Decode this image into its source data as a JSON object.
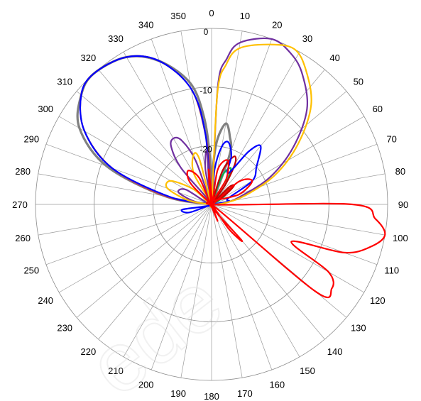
{
  "chart_data": {
    "type": "polar-line",
    "title": "",
    "angle_direction": "clockwise",
    "zero_at": "top",
    "angle_labels": [
      "0",
      "10",
      "20",
      "30",
      "40",
      "50",
      "60",
      "70",
      "80",
      "90",
      "100",
      "110",
      "120",
      "130",
      "140",
      "150",
      "160",
      "170",
      "180",
      "190",
      "200",
      "210",
      "220",
      "230",
      "240",
      "250",
      "260",
      "270",
      "280",
      "290",
      "300",
      "310",
      "320",
      "330",
      "340",
      "350"
    ],
    "radial_range_db": [
      -30,
      0
    ],
    "radial_ticks": [
      "0",
      "-10",
      "-20"
    ],
    "grid": true,
    "watermark": "ede",
    "series": [
      {
        "color": "#c0504d",
        "theta": [
          -90,
          -80,
          -70,
          -60,
          -50,
          -42,
          -30,
          -20,
          -10,
          -5,
          -2,
          0,
          2,
          5
        ],
        "r": [
          -30,
          -22,
          -12,
          -5,
          -1,
          0,
          -1,
          -4,
          -10,
          -18,
          -25,
          -30,
          -27,
          -30
        ]
      },
      {
        "color": "#808080",
        "theta": [
          -90,
          -80,
          -70,
          -60,
          -50,
          -42,
          -30,
          -20,
          -10,
          -5,
          -2,
          0,
          2,
          5,
          10,
          15,
          20,
          25
        ],
        "r": [
          -30,
          -22,
          -11,
          -4,
          -1,
          0,
          -1,
          -4,
          -9,
          -15,
          -22,
          -30,
          -24,
          -19,
          -16,
          -18,
          -21,
          -30
        ]
      },
      {
        "color": "#0000ff",
        "theta": [
          -120,
          -110,
          -100,
          -90,
          -80,
          -70,
          -60,
          -50,
          -42,
          -30,
          -20,
          -10,
          -5,
          0,
          5,
          10,
          15,
          22,
          28,
          35,
          40,
          50,
          60,
          70,
          80,
          90
        ],
        "r": [
          -30,
          -26,
          -25,
          -30,
          -23,
          -12,
          -5,
          -1,
          0,
          -1,
          -4,
          -10,
          -18,
          -30,
          -24,
          -20,
          -19,
          -21,
          -24,
          -19,
          -17,
          -20,
          -22,
          -27,
          -27,
          -30
        ]
      },
      {
        "color": "#7030a0",
        "theta": [
          -90,
          -80,
          -70,
          -60,
          -50,
          -40,
          -35,
          -30,
          -25,
          -20,
          -15,
          -10,
          -5,
          0,
          3,
          6,
          10,
          20,
          28,
          35,
          45,
          55,
          65,
          75,
          85,
          90
        ],
        "r": [
          -30,
          -27,
          -24,
          -25,
          -30,
          -22,
          -18,
          -17,
          -18,
          -22,
          -30,
          -24,
          -21,
          -30,
          -10,
          -5,
          -2,
          0,
          -1,
          -3,
          -7,
          -13,
          -19,
          -25,
          -28,
          -30
        ]
      },
      {
        "color": "#ffc000",
        "theta": [
          -90,
          -80,
          -70,
          -60,
          -50,
          -40,
          -30,
          -20,
          -15,
          -10,
          -5,
          0,
          3,
          6,
          10,
          20,
          28,
          35,
          45,
          55,
          65,
          75,
          85,
          90
        ],
        "r": [
          -30,
          -26,
          -22,
          -22,
          -26,
          -30,
          -24,
          -21,
          -22,
          -30,
          -25,
          -30,
          -11,
          -6,
          -3,
          -1,
          0,
          -2,
          -6,
          -12,
          -18,
          -24,
          -28,
          -30
        ]
      },
      {
        "color": "#ff0000",
        "theta": [
          -55,
          -45,
          -35,
          -25,
          -15,
          -5,
          0,
          10,
          20,
          30,
          40,
          50,
          60,
          70,
          80,
          90,
          95,
          100,
          105,
          110,
          115,
          120,
          125,
          130,
          135,
          140,
          145,
          150,
          160,
          170,
          180
        ],
        "r": [
          -30,
          -25,
          -23,
          -25,
          -30,
          -24,
          -30,
          -24,
          -22,
          -25,
          -30,
          -24,
          -22,
          -25,
          -30,
          -6,
          -2,
          0,
          -2,
          -6,
          -15,
          -7,
          -5,
          -7,
          -30,
          -22,
          -25,
          -30,
          -27,
          -30,
          -30
        ]
      },
      {
        "color": "#00b050",
        "theta": [
          10,
          20,
          28,
          35,
          40,
          45,
          50,
          60,
          70
        ],
        "r": [
          -30,
          -25,
          -23,
          -26,
          -30,
          -27,
          -26,
          -28,
          -30
        ]
      },
      {
        "color": "#c00000",
        "theta": [
          10,
          18,
          25,
          30,
          35,
          40,
          45,
          50,
          55,
          60
        ],
        "r": [
          -30,
          -24,
          -21,
          -22,
          -26,
          -30,
          -26,
          -25,
          -27,
          -30
        ]
      }
    ]
  }
}
